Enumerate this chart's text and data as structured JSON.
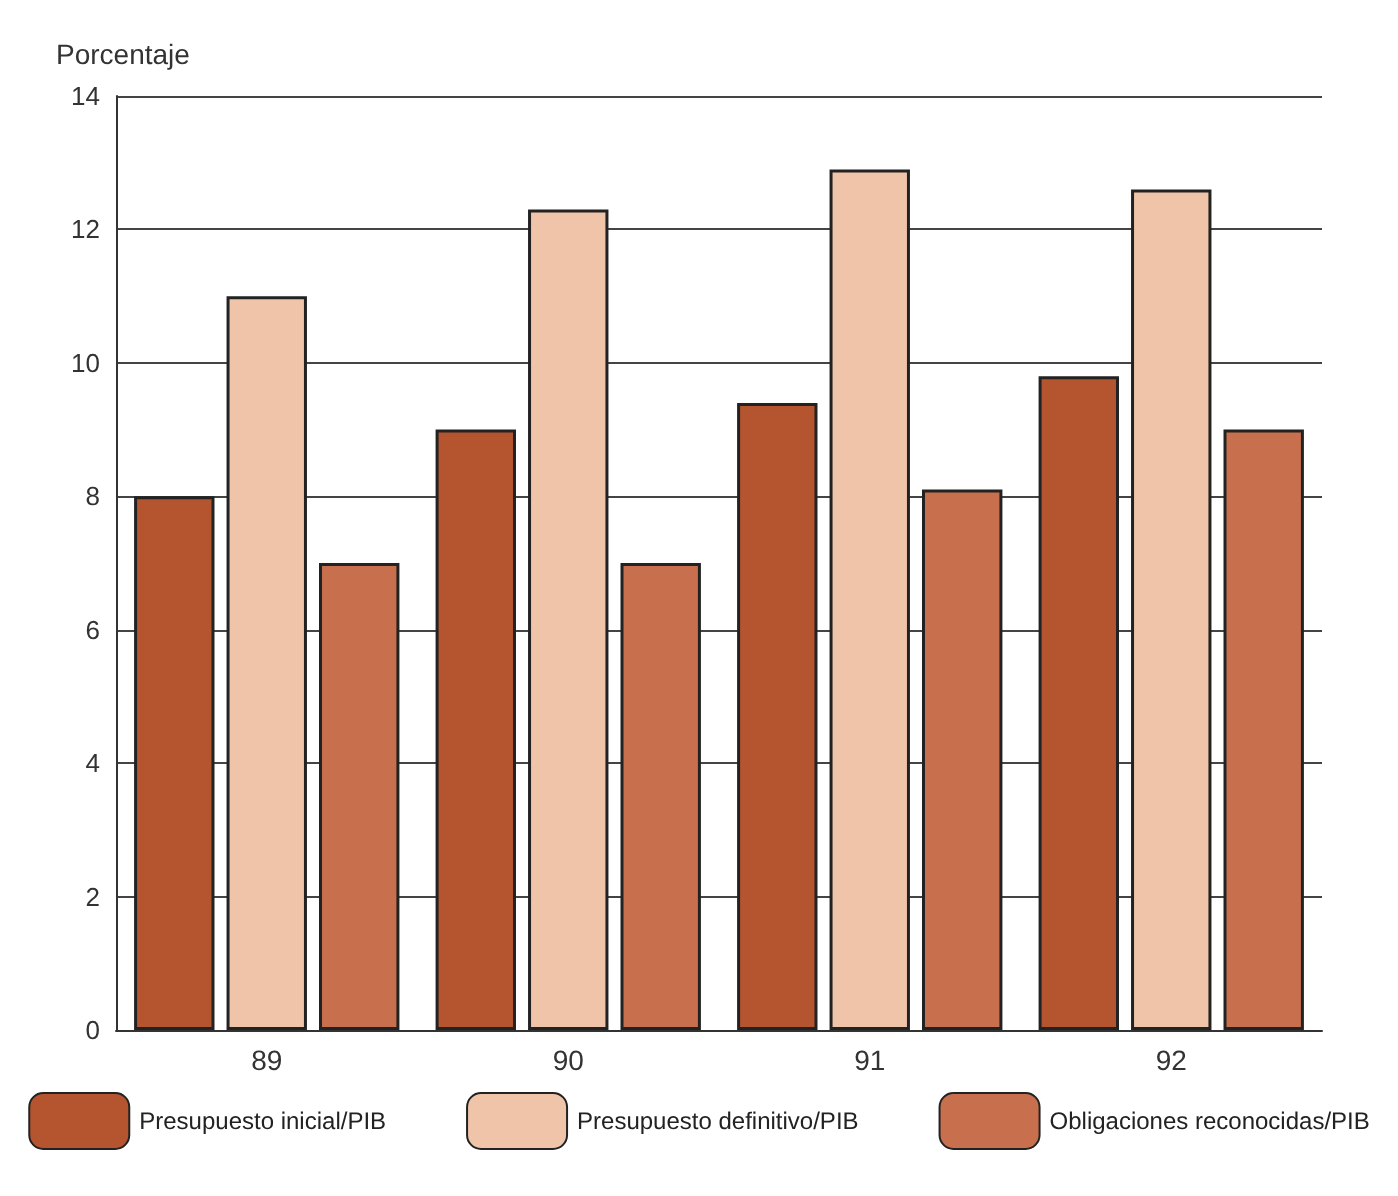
{
  "chart_data": {
    "type": "bar",
    "ylabel": "Porcentaje",
    "categories": [
      "89",
      "90",
      "91",
      "92"
    ],
    "series": [
      {
        "name": "Presupuesto inicial/PIB",
        "color": "#b5552f",
        "values": [
          8,
          9,
          9.4,
          9.8
        ]
      },
      {
        "name": "Presupuesto definitivo/PIB",
        "color": "#f0c4a8",
        "values": [
          11,
          12.3,
          12.9,
          12.6
        ]
      },
      {
        "name": "Obligaciones reconocidas/PIB",
        "color": "#c8704e",
        "values": [
          7,
          7,
          8.1,
          9
        ]
      }
    ],
    "ylim": [
      0,
      14
    ],
    "yticks": [
      0,
      2,
      4,
      6,
      8,
      10,
      12,
      14
    ],
    "grid": "y",
    "legend": "bottom"
  }
}
